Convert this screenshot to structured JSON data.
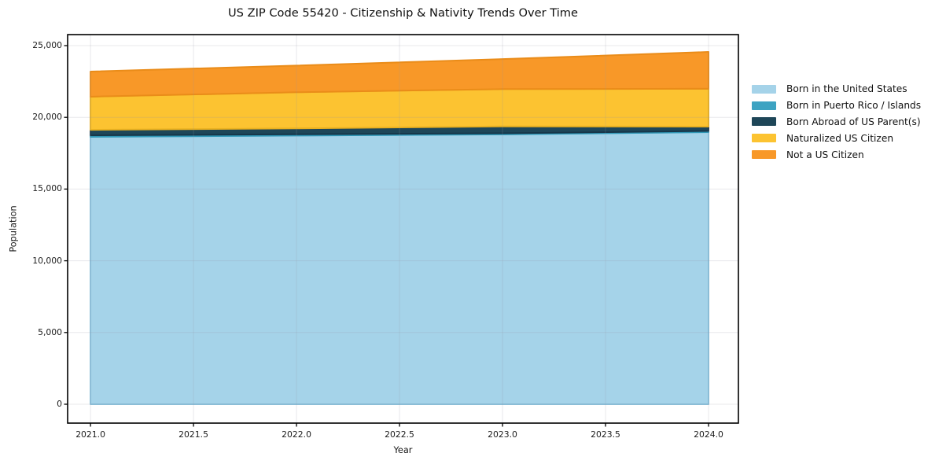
{
  "figure": {
    "title": "US ZIP Code 55420 - Citizenship & Nativity Trends Over Time",
    "xlabel": "Year",
    "ylabel": "Population"
  },
  "chart_data": {
    "type": "area",
    "stacked": true,
    "title": "US ZIP Code 55420 - Citizenship & Nativity Trends Over Time",
    "xlabel": "Year",
    "ylabel": "Population",
    "x": [
      2021,
      2022,
      2023,
      2024
    ],
    "series": [
      {
        "name": "Born in the United States",
        "color": "#a5d3e9",
        "edge": "#8ac2dd",
        "values": [
          18640,
          18730,
          18810,
          18970
        ]
      },
      {
        "name": "Born in Puerto Rico / Islands",
        "color": "#3da3c2",
        "edge": "#2f97b6",
        "values": [
          110,
          90,
          80,
          80
        ]
      },
      {
        "name": "Born Abroad of US Parent(s)",
        "color": "#1e4658",
        "edge": "#17374a",
        "values": [
          380,
          410,
          480,
          300
        ]
      },
      {
        "name": "Naturalized US Citizen",
        "color": "#fcc331",
        "edge": "#eab120",
        "values": [
          2310,
          2520,
          2600,
          2640
        ]
      },
      {
        "name": "Not a US Citizen",
        "color": "#f89828",
        "edge": "#ea8c19",
        "values": [
          1750,
          1860,
          2090,
          2570
        ]
      }
    ],
    "totals": [
      23190,
      23610,
      24060,
      24560
    ],
    "xticks": [
      "2021.0",
      "2021.5",
      "2022.0",
      "2022.5",
      "2023.0",
      "2023.5",
      "2024.0"
    ],
    "xtick_values": [
      2021,
      2021.5,
      2022,
      2022.5,
      2023,
      2023.5,
      2024
    ],
    "yticks": [
      "0",
      "5,000",
      "10,000",
      "15,000",
      "20,000",
      "25,000"
    ],
    "ytick_values": [
      0,
      5000,
      10000,
      15000,
      20000,
      25000
    ],
    "xlim": [
      2020.889,
      2024.145
    ],
    "ylim": [
      -1316,
      25768
    ],
    "grid": true,
    "legend_position": "right"
  }
}
